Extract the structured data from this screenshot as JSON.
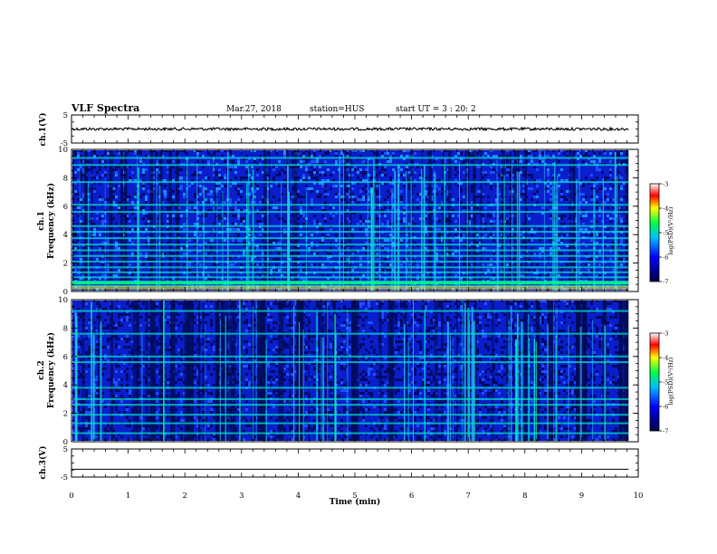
{
  "header": {
    "title": "VLF Spectra",
    "date": "Mar.27, 2018",
    "station": "station=HUS",
    "start": "start  UT =   3 : 20: 2"
  },
  "chart_data": [
    {
      "type": "line",
      "name": "ch1-voltage",
      "ylabel": "ch.1(V)",
      "ylim": [
        -5,
        5
      ],
      "yticks": [
        "5",
        "-5"
      ],
      "x": [
        0,
        9.83
      ],
      "y": [
        0,
        0
      ]
    },
    {
      "type": "heatmap",
      "name": "ch1-spectrogram",
      "ylabel_line1": "ch.1",
      "ylabel_line2": "Frequency (kHz)",
      "ylim": [
        0,
        10
      ],
      "yticks": [
        "0",
        "2",
        "4",
        "6",
        "8",
        "10"
      ],
      "xlim": [
        0,
        9.83
      ],
      "bands_khz": [
        0.4,
        0.7,
        1.0,
        1.35,
        1.7,
        2.1,
        2.5,
        2.9,
        3.3,
        3.75,
        4.2,
        4.6,
        5.6,
        6.1,
        7.7,
        8.9,
        9.4
      ],
      "colorbar": {
        "label": "log(PSD)(V²/Hz)",
        "ticks": [
          "-3",
          "-4",
          "-5",
          "-6",
          "-7"
        ],
        "range": [
          -7,
          -3
        ]
      }
    },
    {
      "type": "heatmap",
      "name": "ch2-spectrogram",
      "ylabel_line1": "ch.2",
      "ylabel_line2": "Frequency (kHz)",
      "ylim": [
        0,
        10
      ],
      "yticks": [
        "0",
        "2",
        "4",
        "6",
        "8",
        "10"
      ],
      "xlim": [
        0,
        9.83
      ],
      "bands_khz": [
        0.6,
        1.3,
        1.9,
        2.6,
        3.0,
        3.8,
        5.6,
        6.0,
        7.6,
        9.2
      ],
      "colorbar": {
        "label": "log(PSD)(V²/Hz)",
        "ticks": [
          "-3",
          "-4",
          "-5",
          "-6",
          "-7"
        ],
        "range": [
          -7,
          -3
        ]
      }
    },
    {
      "type": "line",
      "name": "ch3-voltage",
      "ylabel": "ch.3(V)",
      "ylim": [
        -5,
        5
      ],
      "yticks": [
        "5",
        "-5"
      ],
      "x": [
        0,
        9.83
      ],
      "y": [
        -2.2,
        -2.2
      ]
    }
  ],
  "xaxis": {
    "label": "Time  (min)",
    "xlim": [
      0,
      10
    ],
    "ticks": [
      "0",
      "1",
      "2",
      "3",
      "4",
      "5",
      "6",
      "7",
      "8",
      "9",
      "10"
    ]
  },
  "colors": {
    "low": "#000050",
    "mid": "#0000ff",
    "high": "#00ffc0",
    "trace": "#000000"
  }
}
